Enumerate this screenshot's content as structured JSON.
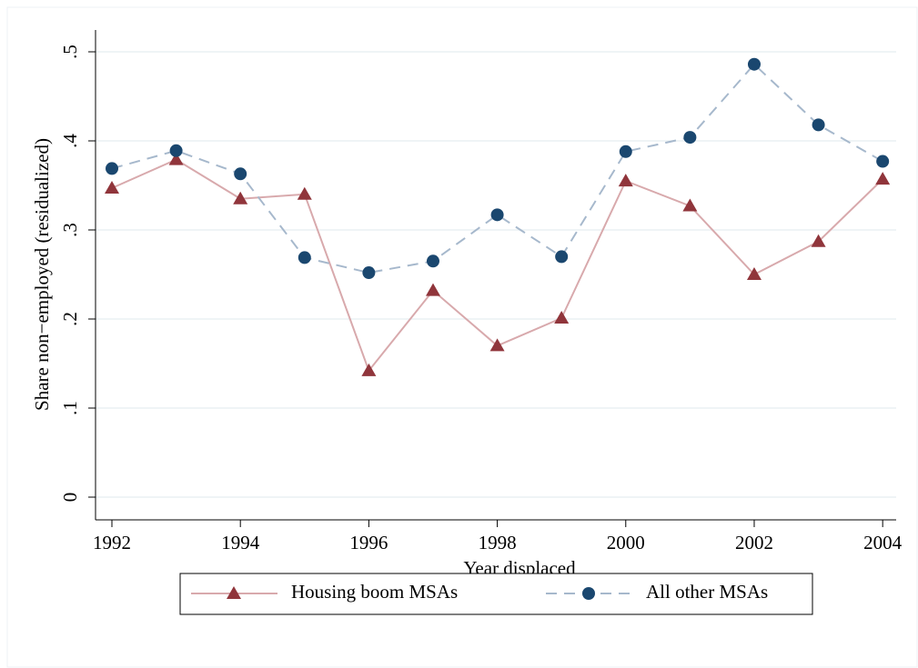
{
  "chart_data": {
    "type": "line",
    "x_label": "Year displaced",
    "y_label": "Share non−employed (residualized)",
    "x": [
      1992,
      1993,
      1994,
      1995,
      1996,
      1997,
      1998,
      1999,
      2000,
      2001,
      2002,
      2003,
      2004
    ],
    "series": [
      {
        "name": "Housing boom MSAs",
        "color": "#90353b",
        "line_color": "#d8a9ac",
        "marker": "triangle",
        "dash": false,
        "values": [
          0.347,
          0.379,
          0.335,
          0.34,
          0.142,
          0.232,
          0.17,
          0.201,
          0.355,
          0.327,
          0.25,
          0.287,
          0.357
        ]
      },
      {
        "name": "All other MSAs",
        "color": "#1a476f",
        "line_color": "#a6b8cc",
        "marker": "circle",
        "dash": true,
        "values": [
          0.369,
          0.389,
          0.363,
          0.269,
          0.252,
          0.265,
          0.317,
          0.27,
          0.388,
          0.404,
          0.486,
          0.418,
          0.377
        ]
      }
    ],
    "xlim": [
      1991.745,
      2004.21
    ],
    "xticks": [
      1992,
      1994,
      1996,
      1998,
      2000,
      2002,
      2004
    ],
    "ylim": [
      -0.0255,
      0.5245
    ],
    "yticks": [
      0,
      {
        "value": 0.1,
        "label": ".1"
      },
      {
        "value": 0.2,
        "label": ".2"
      },
      {
        "value": 0.3,
        "label": ".3"
      },
      {
        "value": 0.4,
        "label": ".4"
      },
      {
        "value": 0.5,
        "label": ".5"
      }
    ],
    "grid": true,
    "legend": "bottom"
  }
}
